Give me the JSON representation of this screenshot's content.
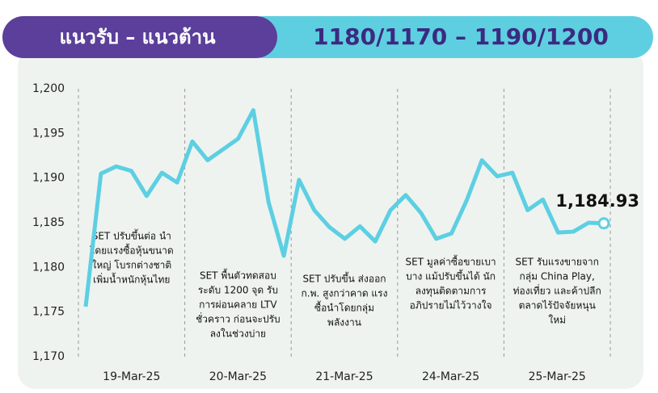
{
  "chart_data": {
    "type": "line",
    "header_left": "แนวรับ – แนวต้าน",
    "header_right": "1180/1170 – 1190/1200",
    "day_labels": [
      "19-Mar-25",
      "20-Mar-25",
      "21-Mar-25",
      "24-Mar-25",
      "25-Mar-25"
    ],
    "ylim": [
      1170,
      1200
    ],
    "yticks": [
      {
        "value": 1170,
        "label": "1,170"
      },
      {
        "value": 1175,
        "label": "1,175"
      },
      {
        "value": 1180,
        "label": "1,180"
      },
      {
        "value": 1185,
        "label": "1,185"
      },
      {
        "value": 1190,
        "label": "1,190"
      },
      {
        "value": 1195,
        "label": "1,195"
      },
      {
        "value": 1200,
        "label": "1,200"
      }
    ],
    "series": [
      {
        "color": "#5dcfe2",
        "values": [
          1175.6,
          1190.5,
          1191.3,
          1190.8,
          1188.0,
          1190.6,
          1189.5,
          1194.1,
          1192.0,
          1193.2,
          1194.4,
          1197.6,
          1187.3,
          1181.3,
          1189.8,
          1186.4,
          1184.5,
          1183.2,
          1184.6,
          1182.9,
          1186.4,
          1188.1,
          1186.1,
          1183.2,
          1183.8,
          1187.5,
          1192.0,
          1190.2,
          1190.6,
          1186.4,
          1187.6,
          1183.9,
          1184.0,
          1185.0,
          1184.93
        ],
        "value_labels": [
          null,
          null,
          null,
          null,
          null,
          null,
          null,
          null,
          null,
          null,
          null,
          null,
          null,
          null,
          null,
          null,
          null,
          null,
          null,
          null,
          null,
          null,
          null,
          null,
          null,
          null,
          null,
          null,
          null,
          null,
          null,
          null,
          null,
          null,
          "1,184.93"
        ]
      }
    ],
    "annotations": [
      [
        "SET ปรับขึ้นต่อ นำ",
        "โดยแรงซื้อหุ้นขนาด",
        "ใหญ่ โบรกต่างชาติ",
        "เพิ่มน้ำหนักหุ้นไทย"
      ],
      [
        "SET พื้นตัวทดสอบ",
        "ระดับ 1200 จุด รับ",
        "การผ่อนคลาย LTV",
        "ชั่วคราว ก่อนจะปรับ",
        "ลงในช่วงบ่าย"
      ],
      [
        "SET ปรับขึ้น ส่งออก",
        "ก.พ. สูงกว่าคาด แรง",
        "ซื้อนำโดยกลุ่ม",
        "พลังงาน"
      ],
      [
        "SET มูลค่าซื้อขายเบา",
        "บาง แม้ปรับขึ้นได้ นัก",
        "ลงทุนติดตามการ",
        "อภิปรายไม่ไว้วางใจ"
      ],
      [
        "SET รับแรงขายจาก",
        "กลุ่ม China Play,",
        "ท่องเที่ยว และค้าปลีก",
        "ตลาดไร้ปัจจัยหนุน",
        "ใหม่"
      ]
    ],
    "grid": false
  }
}
